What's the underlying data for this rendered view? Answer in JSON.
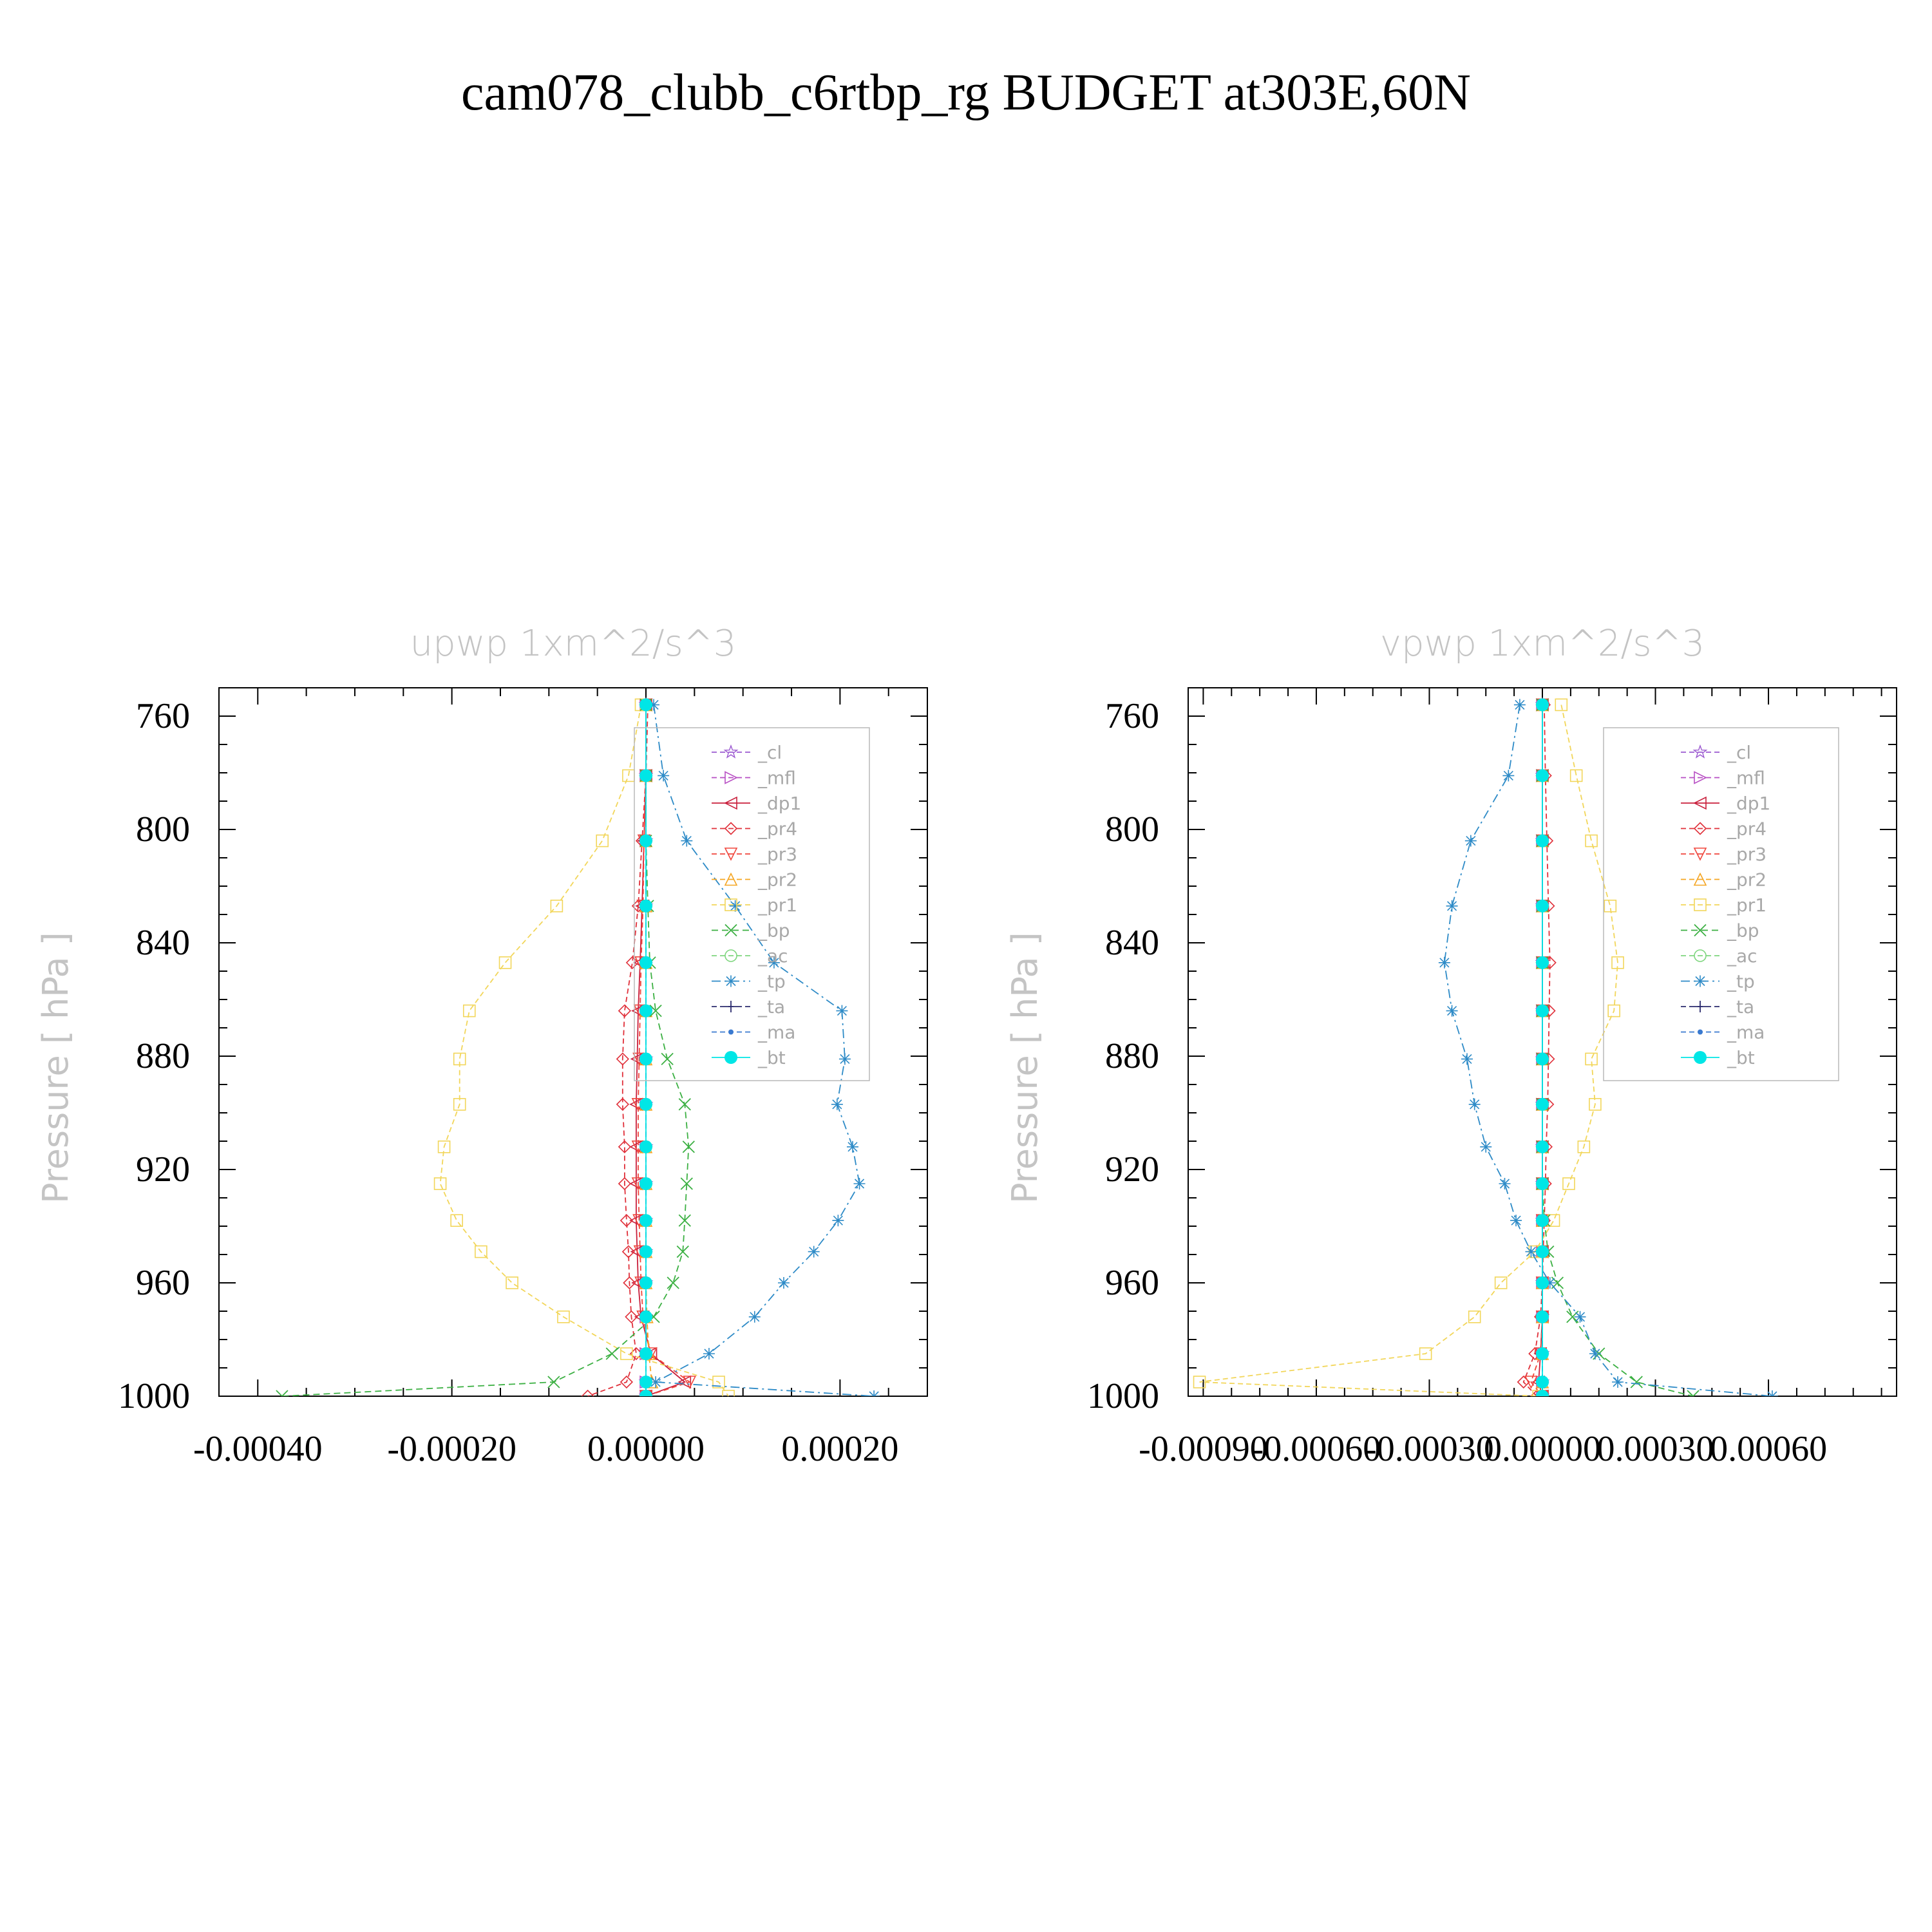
{
  "title": "cam078_clubb_c6rtbp_rg  BUDGET at303E,60N",
  "ylabel": "Pressure  [ hPa ]",
  "ylim": [
    750,
    1000
  ],
  "yticks": [
    760,
    800,
    840,
    880,
    920,
    960,
    1000
  ],
  "legend_labels": [
    "_cl",
    "_mfl",
    "_dp1",
    "_pr4",
    "_pr3",
    "_pr2",
    "_pr1",
    "_bp",
    "_ac",
    "_tp",
    "_ta",
    "_ma",
    "_bt"
  ],
  "styles": {
    "_cl": {
      "color": "#9b59d0",
      "marker": "star",
      "dash": "8,5"
    },
    "_mfl": {
      "color": "#b84fc4",
      "marker": "tri-right",
      "dash": "8,5"
    },
    "_dp1": {
      "color": "#c91f3c",
      "marker": "tri-left",
      "dash": ""
    },
    "_pr4": {
      "color": "#e0303a",
      "marker": "diamond",
      "dash": "8,5"
    },
    "_pr3": {
      "color": "#f0463c",
      "marker": "tri-down",
      "dash": "8,5"
    },
    "_pr2": {
      "color": "#f5a623",
      "marker": "tri-up",
      "dash": "8,5"
    },
    "_pr1": {
      "color": "#f2d65a",
      "marker": "square",
      "dash": "8,5"
    },
    "_bp": {
      "color": "#3cb043",
      "marker": "x",
      "dash": "10,6"
    },
    "_ac": {
      "color": "#7ed67e",
      "marker": "circle",
      "dash": "8,5"
    },
    "_tp": {
      "color": "#2e8bc7",
      "marker": "asterisk",
      "dash": "14,6,3,6"
    },
    "_ta": {
      "color": "#2c2c6e",
      "marker": "plus",
      "dash": "8,5"
    },
    "_ma": {
      "color": "#3a7ad0",
      "marker": "dot",
      "dash": "8,5"
    },
    "_bt": {
      "color": "#00e6e6",
      "marker": "filled-circle",
      "dash": ""
    }
  },
  "chart_data": [
    {
      "type": "line",
      "title": "upwp    1xm^2/s^3",
      "ylabel": "Pressure  [ hPa ]",
      "xlim": [
        -0.00044,
        0.00029
      ],
      "ylim": [
        750,
        1000
      ],
      "xticks": [
        -0.0004,
        -0.0002,
        0,
        0.0002
      ],
      "xtick_labels": [
        "-0.00040",
        "-0.00020",
        "0.00000",
        "0.00020"
      ],
      "yticks": [
        760,
        800,
        840,
        880,
        920,
        960,
        1000
      ],
      "y": [
        756,
        781,
        804,
        827,
        847,
        864,
        881,
        897,
        912,
        925,
        938,
        949,
        960,
        972,
        985,
        995,
        1000
      ],
      "series": [
        {
          "name": "_cl",
          "values": [
            0,
            0,
            0,
            0,
            0,
            0,
            0,
            0,
            0,
            0,
            0,
            0,
            0,
            0,
            0,
            0,
            0
          ]
        },
        {
          "name": "_mfl",
          "values": [
            0,
            0,
            0,
            0,
            0,
            0,
            0,
            0,
            0,
            0,
            0,
            0,
            0,
            0,
            0,
            0,
            0
          ]
        },
        {
          "name": "_dp1",
          "values": [
            0,
            0,
            -2e-06,
            -4e-06,
            -6e-06,
            -8e-06,
            -9e-06,
            -1e-05,
            -1e-05,
            -1e-05,
            -1e-05,
            -9e-06,
            -8e-06,
            -5e-06,
            5e-06,
            4e-05,
            0
          ]
        },
        {
          "name": "_pr4",
          "values": [
            2e-06,
            0,
            -4e-06,
            -8e-06,
            -1.4e-05,
            -2.2e-05,
            -2.4e-05,
            -2.4e-05,
            -2.2e-05,
            -2.2e-05,
            -2e-05,
            -1.8e-05,
            -1.7e-05,
            -1.5e-05,
            -1e-05,
            -2e-05,
            -6e-05
          ]
        },
        {
          "name": "_pr3",
          "values": [
            0,
            0,
            -2e-06,
            -3e-06,
            -5e-06,
            -6e-06,
            -7e-06,
            -8e-06,
            -8e-06,
            -8e-06,
            -7e-06,
            -6e-06,
            -5e-06,
            -3e-06,
            5e-06,
            4.5e-05,
            0
          ]
        },
        {
          "name": "_pr2",
          "values": [
            0,
            0,
            0,
            0,
            0,
            0,
            0,
            0,
            0,
            0,
            0,
            0,
            0,
            1e-06,
            3e-06,
            6e-06,
            0
          ]
        },
        {
          "name": "_pr1",
          "values": [
            -5e-06,
            -1.8e-05,
            -4.5e-05,
            -9.2e-05,
            -0.000145,
            -0.000182,
            -0.000192,
            -0.000192,
            -0.000208,
            -0.000212,
            -0.000195,
            -0.00017,
            -0.000138,
            -8.5e-05,
            -2e-05,
            7.5e-05,
            8.5e-05
          ]
        },
        {
          "name": "_bp",
          "values": [
            0,
            0,
            0,
            2e-06,
            4e-06,
            1e-05,
            2.2e-05,
            4e-05,
            4.4e-05,
            4.2e-05,
            4e-05,
            3.8e-05,
            2.8e-05,
            8e-06,
            -3.5e-05,
            -9.5e-05,
            -0.000375
          ]
        },
        {
          "name": "_ac",
          "values": [
            0,
            0,
            0,
            0,
            0,
            0,
            0,
            0,
            0,
            0,
            0,
            0,
            0,
            0,
            0,
            0,
            0
          ]
        },
        {
          "name": "_tp",
          "values": [
            8e-06,
            1.8e-05,
            4.2e-05,
            9.2e-05,
            0.000132,
            0.000202,
            0.000205,
            0.000197,
            0.000213,
            0.00022,
            0.000198,
            0.000173,
            0.000142,
            0.000112,
            6.5e-05,
            1e-05,
            0.000235
          ]
        },
        {
          "name": "_ta",
          "values": [
            0,
            0,
            0,
            0,
            0,
            0,
            0,
            0,
            0,
            0,
            0,
            0,
            0,
            0,
            0,
            0,
            0
          ]
        },
        {
          "name": "_ma",
          "values": [
            0,
            0,
            0,
            0,
            0,
            0,
            0,
            0,
            0,
            0,
            0,
            0,
            0,
            0,
            0,
            0,
            0
          ]
        },
        {
          "name": "_bt",
          "values": [
            0,
            0,
            0,
            0,
            0,
            0,
            0,
            0,
            0,
            0,
            0,
            0,
            0,
            0,
            0,
            0,
            0
          ]
        }
      ]
    },
    {
      "type": "line",
      "title": "vpwp    1xm^2/s^3",
      "ylabel": "Pressure  [ hPa ]",
      "xlim": [
        -0.00094,
        0.00094
      ],
      "ylim": [
        750,
        1000
      ],
      "xticks": [
        -0.0009,
        -0.0006,
        -0.0003,
        0,
        0.0003,
        0.0006
      ],
      "xtick_labels": [
        "-0.00090",
        "-0.00060",
        "-0.00030",
        "0.00000",
        "0.00030",
        "0.00060"
      ],
      "yticks": [
        760,
        800,
        840,
        880,
        920,
        960,
        1000
      ],
      "y": [
        756,
        781,
        804,
        827,
        847,
        864,
        881,
        897,
        912,
        925,
        938,
        949,
        960,
        972,
        985,
        995,
        1000
      ],
      "series": [
        {
          "name": "_cl",
          "values": [
            0,
            0,
            0,
            0,
            0,
            0,
            0,
            0,
            0,
            0,
            0,
            0,
            0,
            0,
            0,
            0,
            0
          ]
        },
        {
          "name": "_mfl",
          "values": [
            0,
            0,
            0,
            0,
            0,
            0,
            0,
            0,
            0,
            0,
            0,
            0,
            0,
            0,
            0,
            0,
            0
          ]
        },
        {
          "name": "_dp1",
          "values": [
            0,
            0,
            0,
            0,
            0,
            0,
            0,
            0,
            0,
            0,
            0,
            0,
            0,
            0,
            -5e-06,
            -1e-05,
            0
          ]
        },
        {
          "name": "_pr4",
          "values": [
            5e-06,
            8e-06,
            1.2e-05,
            1.6e-05,
            2e-05,
            1.8e-05,
            1.6e-05,
            1.4e-05,
            1e-05,
            8e-06,
            5e-06,
            2e-06,
            0,
            -5e-06,
            -2e-05,
            -5e-05,
            -1.5e-05
          ]
        },
        {
          "name": "_pr3",
          "values": [
            0,
            0,
            0,
            0,
            0,
            0,
            0,
            0,
            0,
            0,
            0,
            0,
            0,
            0,
            -5e-06,
            -3e-05,
            0
          ]
        },
        {
          "name": "_pr2",
          "values": [
            0,
            0,
            0,
            0,
            0,
            0,
            0,
            0,
            0,
            0,
            0,
            0,
            0,
            0,
            0,
            0,
            0
          ]
        },
        {
          "name": "_pr1",
          "values": [
            5e-05,
            9e-05,
            0.00013,
            0.00018,
            0.0002,
            0.00019,
            0.00013,
            0.00014,
            0.00011,
            7e-05,
            3e-05,
            -2e-05,
            -0.00011,
            -0.00018,
            -0.00031,
            -0.00091,
            -1e-05
          ]
        },
        {
          "name": "_bp",
          "values": [
            0,
            0,
            0,
            0,
            0,
            0,
            0,
            0,
            0,
            0,
            5e-06,
            1.5e-05,
            4e-05,
            8e-05,
            0.00015,
            0.00025,
            0.0004
          ]
        },
        {
          "name": "_ac",
          "values": [
            0,
            0,
            0,
            0,
            0,
            0,
            0,
            0,
            0,
            0,
            0,
            0,
            0,
            0,
            0,
            0,
            0
          ]
        },
        {
          "name": "_tp",
          "values": [
            -6e-05,
            -9e-05,
            -0.00019,
            -0.00024,
            -0.00026,
            -0.00024,
            -0.0002,
            -0.00018,
            -0.00015,
            -0.0001,
            -7e-05,
            -3e-05,
            2e-05,
            0.0001,
            0.00014,
            0.0002,
            0.00061
          ]
        },
        {
          "name": "_ta",
          "values": [
            0,
            0,
            0,
            0,
            0,
            0,
            0,
            0,
            0,
            0,
            0,
            0,
            0,
            0,
            0,
            0,
            0
          ]
        },
        {
          "name": "_ma",
          "values": [
            0,
            0,
            0,
            0,
            0,
            0,
            0,
            0,
            0,
            0,
            0,
            0,
            0,
            0,
            0,
            0,
            0
          ]
        },
        {
          "name": "_bt",
          "values": [
            0,
            0,
            0,
            0,
            0,
            0,
            0,
            0,
            0,
            0,
            0,
            0,
            0,
            0,
            0,
            0,
            0
          ]
        }
      ]
    }
  ]
}
